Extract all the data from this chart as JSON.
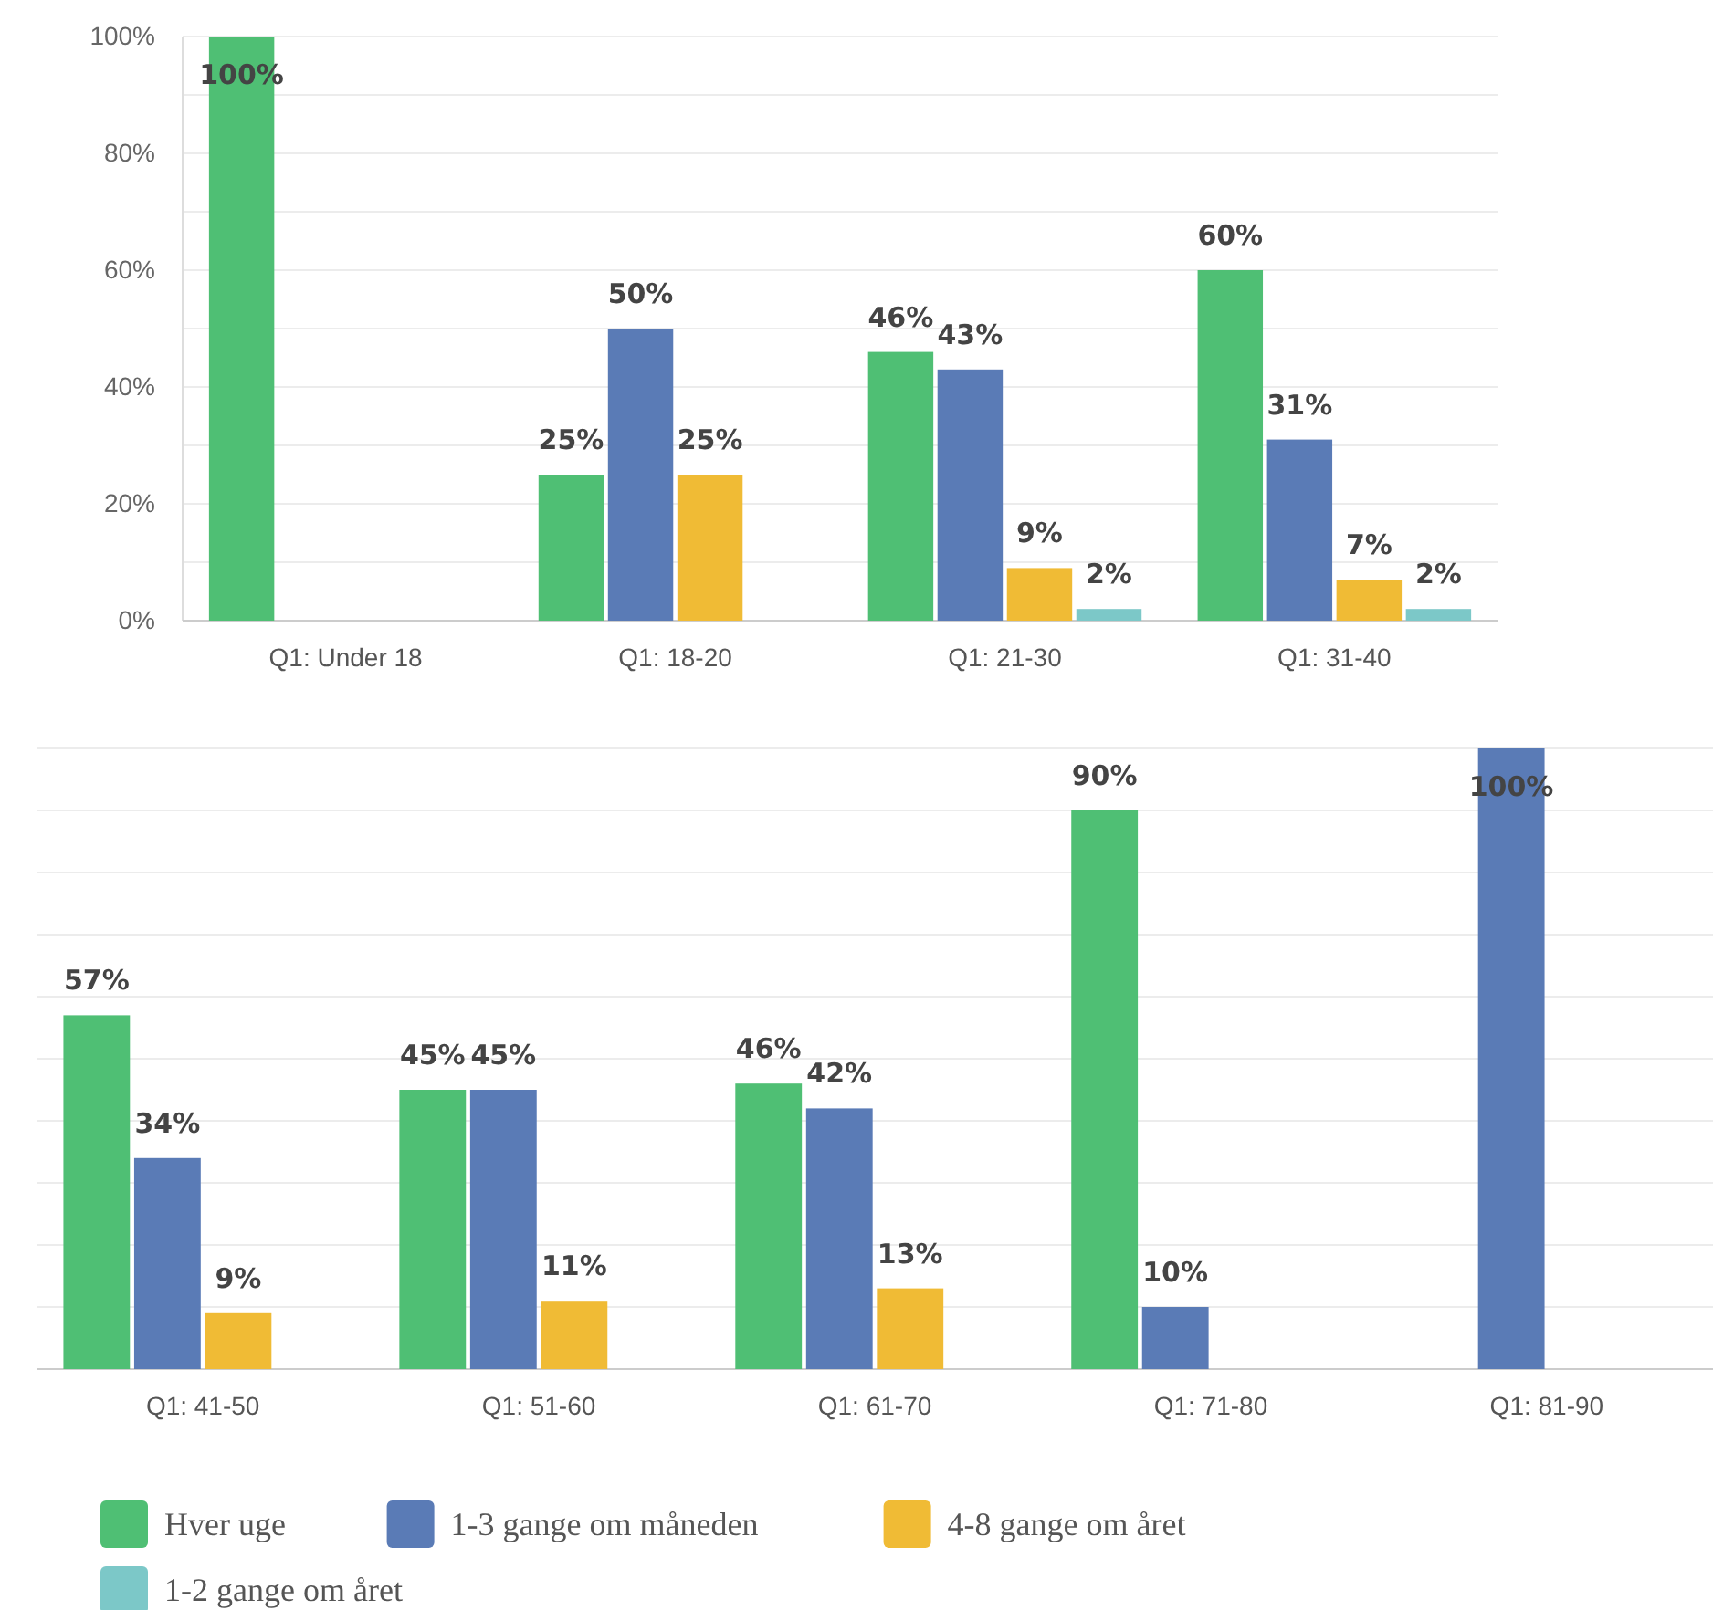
{
  "chart_data": [
    {
      "type": "bar",
      "categories": [
        "Q1: Under 18",
        "Q1: 18-20",
        "Q1: 21-30",
        "Q1: 31-40"
      ],
      "ylim": [
        0,
        100
      ],
      "yticks": [
        {
          "value": 0,
          "label": "0%"
        },
        {
          "value": 10,
          "label": null
        },
        {
          "value": 20,
          "label": "20%"
        },
        {
          "value": 30,
          "label": null
        },
        {
          "value": 40,
          "label": "40%"
        },
        {
          "value": 50,
          "label": null
        },
        {
          "value": 60,
          "label": "60%"
        },
        {
          "value": 70,
          "label": null
        },
        {
          "value": 80,
          "label": "80%"
        },
        {
          "value": 90,
          "label": null
        },
        {
          "value": 100,
          "label": "100%"
        }
      ],
      "grid": "y",
      "legend": false,
      "series": [
        {
          "color": "#4fbf74",
          "values": [
            100,
            25,
            46,
            60
          ],
          "value_labels": [
            "100%",
            "25%",
            "46%",
            "60%"
          ]
        },
        {
          "color": "#5a7bb6",
          "values": [
            null,
            50,
            43,
            31
          ],
          "value_labels": [
            null,
            "50%",
            "43%",
            "31%"
          ]
        },
        {
          "color": "#f0bb35",
          "values": [
            null,
            25,
            9,
            7
          ],
          "value_labels": [
            null,
            "25%",
            "9%",
            "7%"
          ]
        },
        {
          "color": "#7cc8c8",
          "values": [
            null,
            null,
            2,
            2
          ],
          "value_labels": [
            null,
            null,
            "2%",
            "2%"
          ]
        }
      ]
    },
    {
      "type": "bar",
      "categories": [
        "Q1: 41-50",
        "Q1: 51-60",
        "Q1: 61-70",
        "Q1: 71-80",
        "Q1: 81-90"
      ],
      "ylim": [
        0,
        100
      ],
      "yticks": [
        {
          "value": 0,
          "label": null
        },
        {
          "value": 10,
          "label": null
        },
        {
          "value": 20,
          "label": null
        },
        {
          "value": 30,
          "label": null
        },
        {
          "value": 40,
          "label": null
        },
        {
          "value": 50,
          "label": null
        },
        {
          "value": 60,
          "label": null
        },
        {
          "value": 70,
          "label": null
        },
        {
          "value": 80,
          "label": null
        },
        {
          "value": 90,
          "label": null
        },
        {
          "value": 100,
          "label": null
        }
      ],
      "tick_labels": "x",
      "grid": "y",
      "legend": "bottom",
      "series": [
        {
          "name": "Hver uge",
          "color": "#4fbf74",
          "values": [
            57,
            45,
            46,
            90,
            null
          ],
          "value_labels": [
            "57%",
            "45%",
            "46%",
            "90%",
            null
          ]
        },
        {
          "name": "1-3 gange om måneden",
          "color": "#5a7bb6",
          "values": [
            34,
            45,
            42,
            10,
            100
          ],
          "value_labels": [
            "34%",
            "45%",
            "42%",
            "10%",
            "100%"
          ]
        },
        {
          "name": "4-8 gange om året",
          "color": "#f0bb35",
          "values": [
            9,
            11,
            13,
            null,
            null
          ],
          "value_labels": [
            "9%",
            "11%",
            "13%",
            null,
            null
          ]
        },
        {
          "name": "1-2 gange om året",
          "color": "#7cc8c8",
          "values": [
            null,
            null,
            null,
            null,
            null
          ]
        }
      ]
    }
  ]
}
